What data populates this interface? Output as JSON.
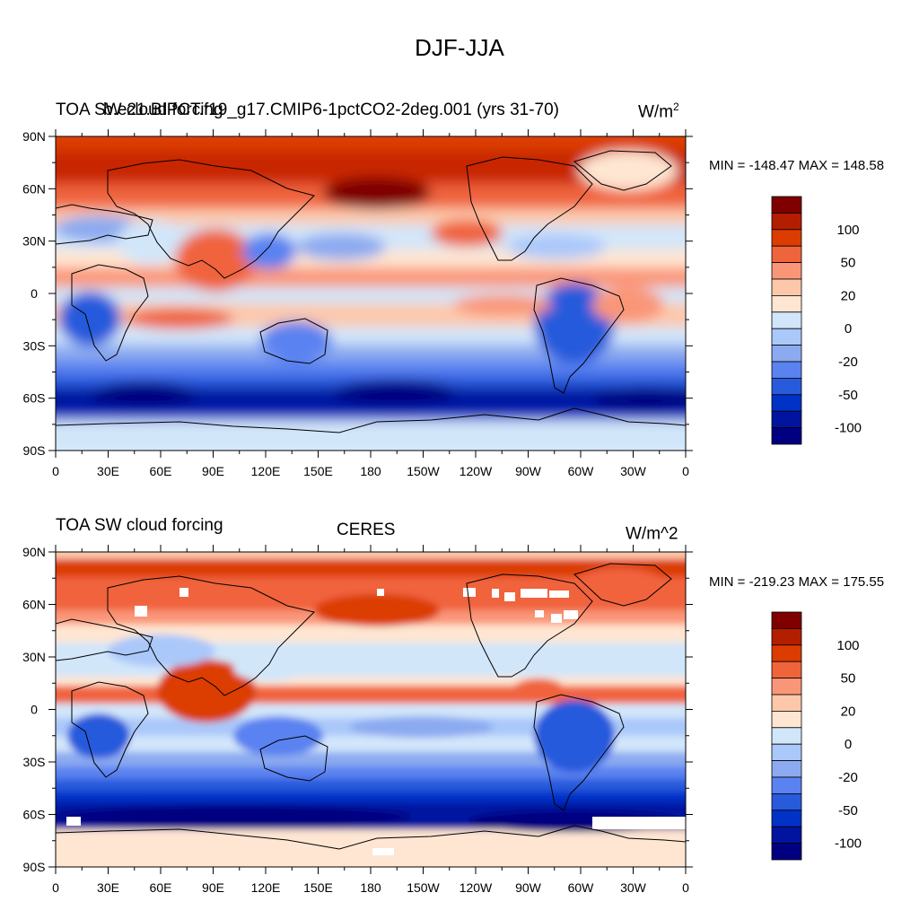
{
  "figure": {
    "title": "DJF-JJA"
  },
  "panels": [
    {
      "left_title": "TOA SW cloud forcing",
      "center_title": "b.e21.BIPCT.f19_g17.CMIP6-1pctCO2-2deg.001 (yrs 31-70)",
      "units_base": "W/m",
      "units_sup": "2",
      "units": "",
      "min_max": "MIN = -148.47  MAX = 148.58"
    },
    {
      "left_title": "TOA SW cloud forcing",
      "center_title": "CERES",
      "units_base": "",
      "units_sup": "",
      "units": "W/m^2",
      "min_max": "MIN = -219.23  MAX = 175.55"
    }
  ],
  "map_axes": {
    "lon_ticks": [
      "0",
      "30E",
      "60E",
      "90E",
      "120E",
      "150E",
      "180",
      "150W",
      "120W",
      "90W",
      "60W",
      "30W",
      "0"
    ],
    "lat_ticks": [
      "90N",
      "60N",
      "30N",
      "0",
      "30S",
      "60S",
      "90S"
    ]
  },
  "colorbar": {
    "labels": [
      "100",
      "50",
      "20",
      "0",
      "-20",
      "-50",
      "-100"
    ],
    "colors": [
      "#800000",
      "#b41e00",
      "#dc3c00",
      "#f0643c",
      "#fa9678",
      "#fdc8aa",
      "#fee6d2",
      "#d2e6fa",
      "#aac8fa",
      "#8caaf0",
      "#5a82f0",
      "#285adc",
      "#0032c8",
      "#0014a0",
      "#000080"
    ]
  },
  "chart_data": {
    "type": "heatmap",
    "title": "DJF-JJA",
    "maps": [
      {
        "name": "b.e21.BIPCT.f19_g17.CMIP6-1pctCO2-2deg.001 (yrs 31-70)",
        "min": -148.47,
        "max": 148.58,
        "units": "W/m^2"
      },
      {
        "name": "CERES",
        "min": -219.23,
        "max": 175.55,
        "units": "W/m^2"
      }
    ],
    "colorbar_levels": [
      100,
      50,
      20,
      0,
      -20,
      -50,
      -100
    ],
    "lon_range": [
      0,
      360
    ],
    "lat_range": [
      -90,
      90
    ]
  }
}
